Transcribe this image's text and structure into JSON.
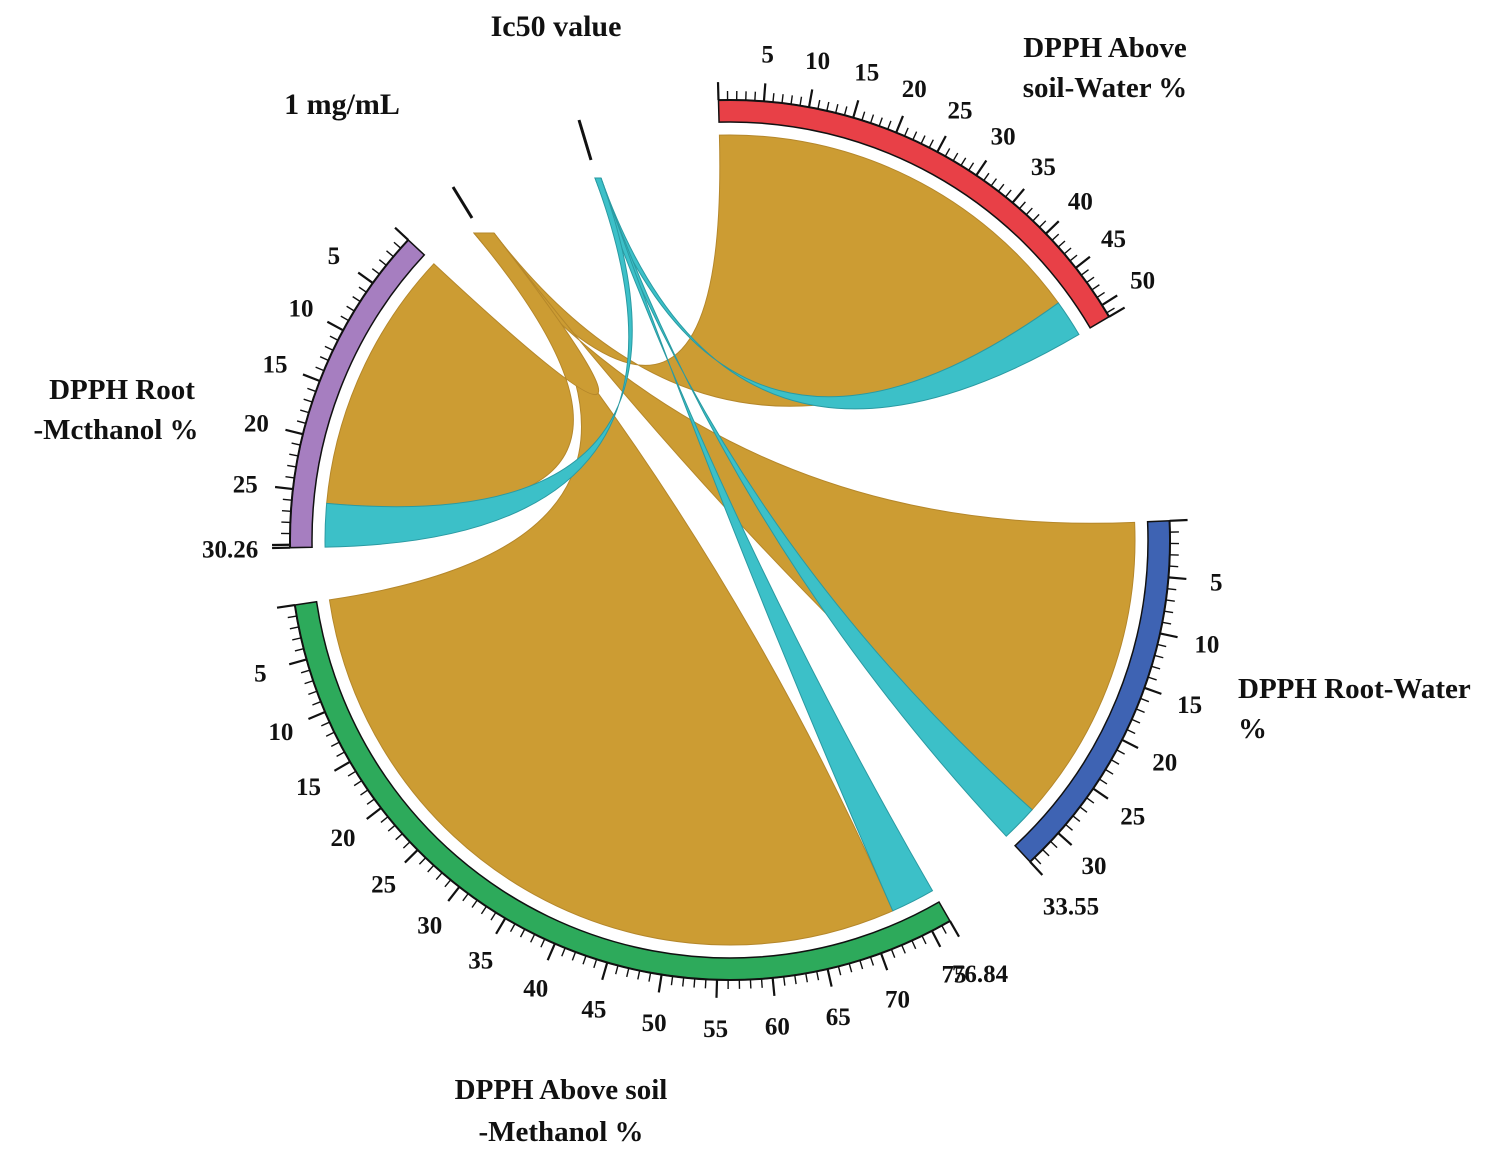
{
  "chart_data": {
    "type": "chord",
    "title": "",
    "source_labels": {
      "ic50": "Ic50 value",
      "conc": "1 mg/mL"
    },
    "colors": {
      "conc_ribbon": "#cc9c33",
      "ic50_ribbon": "#3cc0c8",
      "above_soil_water": "#e84047",
      "root_water": "#3e63b3",
      "above_soil_methanol": "#2daa5b",
      "root_methanol": "#a67ec0"
    },
    "segments": [
      {
        "key": "above_soil_water",
        "label_lines": [
          "DPPH Above",
          "soil-Water %"
        ],
        "total": 51.5,
        "ticks": [
          "5",
          "10",
          "15",
          "20",
          "25",
          "30",
          "35",
          "40",
          "45",
          "50"
        ],
        "end_label": "",
        "flows": {
          "conc": 47.0,
          "ic50": 4.5
        }
      },
      {
        "key": "root_water",
        "label_lines": [
          "DPPH Root-Water",
          "%"
        ],
        "total": 33.55,
        "ticks": [
          "5",
          "10",
          "15",
          "20",
          "25",
          "30"
        ],
        "end_label": "33.55",
        "flows": {
          "conc": 30.0,
          "ic50": 3.55
        }
      },
      {
        "key": "above_soil_methanol",
        "label_lines": [
          "DPPH Above soil",
          "-Methanol %"
        ],
        "total": 76.84,
        "ticks": [
          "5",
          "10",
          "15",
          "20",
          "25",
          "30",
          "35",
          "40",
          "45",
          "50",
          "55",
          "60",
          "65",
          "70",
          "75"
        ],
        "end_label": "76.84",
        "flows": {
          "conc": 72.5,
          "ic50": 4.34
        }
      },
      {
        "key": "root_methanol",
        "label_lines": [
          "DPPH Root",
          "-Mcthanol %"
        ],
        "total": 30.26,
        "ticks": [
          "5",
          "10",
          "15",
          "20",
          "25"
        ],
        "end_label": "30.26",
        "flows": {
          "conc": 26.0,
          "ic50": 4.26
        }
      }
    ]
  }
}
